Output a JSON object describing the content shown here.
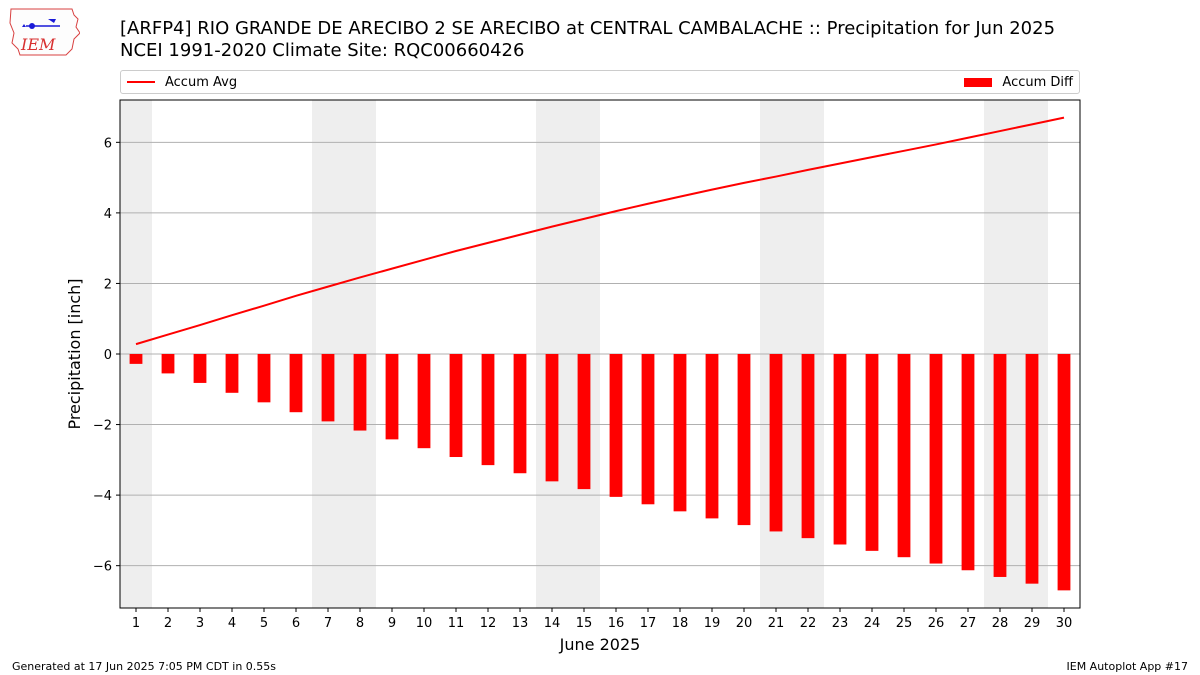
{
  "logo": {
    "text": "IEM",
    "icon": "iowa-map-logo-icon"
  },
  "title": {
    "line1": "[ARFP4] RIO GRANDE DE ARECIBO 2 SE ARECIBO at CENTRAL CAMBALACHE :: Precipitation for Jun 2025",
    "line2": "NCEI 1991-2020 Climate Site: RQC00660426"
  },
  "footer": {
    "left": "Generated at 17 Jun 2025 7:05 PM CDT in 0.55s",
    "right": "IEM Autoplot App #17"
  },
  "colors": {
    "line": "#ff0000",
    "bar": "#ff0000",
    "weekend": "#eeeeee",
    "grid": "#b0b0b0"
  },
  "chart_data": {
    "type": "bar",
    "xlabel": "June 2025",
    "ylabel": "Precipitation [inch]",
    "ylim": [
      -7.2,
      7.2
    ],
    "yticks": [
      -6,
      -4,
      -2,
      0,
      2,
      4,
      6
    ],
    "grid": "horizontal",
    "legend_placement": "top, above plot",
    "categories": [
      "1",
      "2",
      "3",
      "4",
      "5",
      "6",
      "7",
      "8",
      "9",
      "10",
      "11",
      "12",
      "13",
      "14",
      "15",
      "16",
      "17",
      "18",
      "19",
      "20",
      "21",
      "22",
      "23",
      "24",
      "25",
      "26",
      "27",
      "28",
      "29",
      "30"
    ],
    "weekend_days": [
      1,
      7,
      8,
      14,
      15,
      21,
      22,
      28,
      29
    ],
    "series": [
      {
        "name": "Accum Avg",
        "kind": "line",
        "color": "#ff0000",
        "values": [
          0.28,
          0.55,
          0.82,
          1.1,
          1.37,
          1.65,
          1.91,
          2.17,
          2.42,
          2.67,
          2.92,
          3.15,
          3.38,
          3.61,
          3.83,
          4.05,
          4.26,
          4.46,
          4.66,
          4.85,
          5.03,
          5.22,
          5.4,
          5.58,
          5.76,
          5.94,
          6.13,
          6.32,
          6.51,
          6.7
        ]
      },
      {
        "name": "Accum Diff",
        "kind": "bar",
        "color": "#ff0000",
        "values": [
          -0.28,
          -0.55,
          -0.82,
          -1.1,
          -1.37,
          -1.65,
          -1.91,
          -2.17,
          -2.42,
          -2.67,
          -2.92,
          -3.15,
          -3.38,
          -3.61,
          -3.83,
          -4.05,
          -4.26,
          -4.46,
          -4.66,
          -4.85,
          -5.03,
          -5.22,
          -5.4,
          -5.58,
          -5.76,
          -5.94,
          -6.13,
          -6.32,
          -6.51,
          -6.7
        ]
      }
    ]
  }
}
